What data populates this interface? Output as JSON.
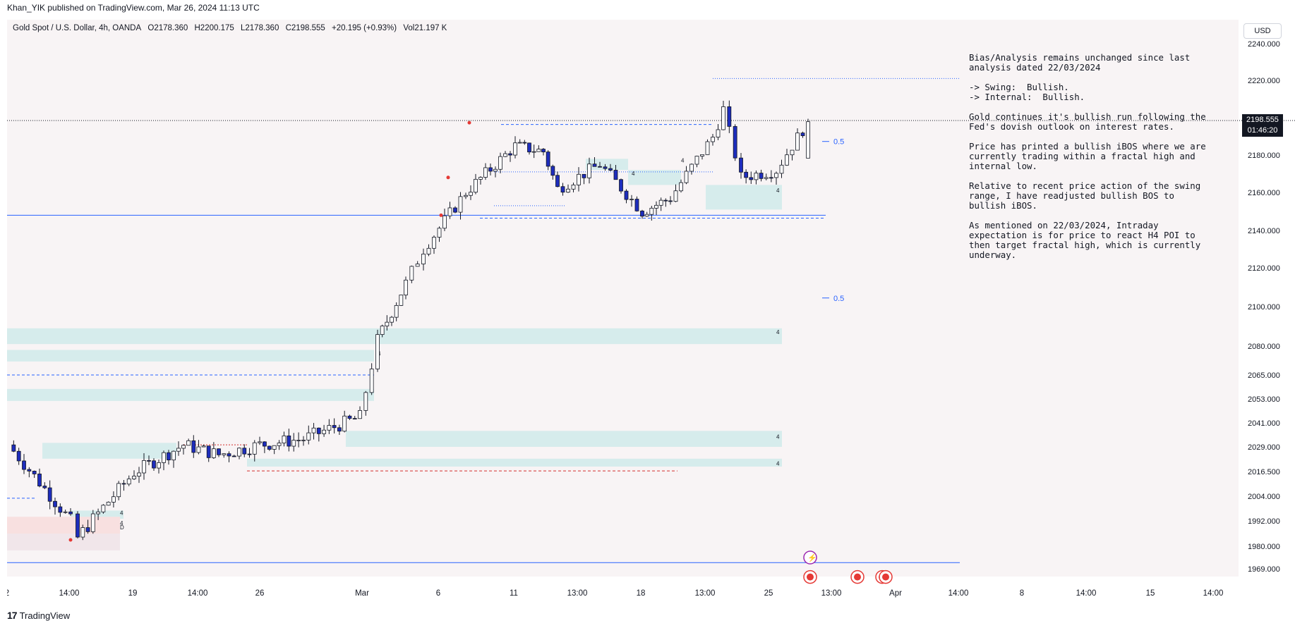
{
  "header": {
    "credit": "Khan_YIK published on TradingView.com, Mar 26, 2024 11:13 UTC"
  },
  "legend": {
    "symbol": "Gold Spot / U.S. Dollar, 4h, OANDA",
    "open": "O2178.360",
    "high": "H2200.175",
    "low": "L2178.360",
    "close": "C2198.555",
    "change": "+20.195 (+0.93%)",
    "volume": "Vol21.197 K"
  },
  "currency_button": "USD",
  "price_label": {
    "price": "2198.555",
    "countdown": "01:46:20"
  },
  "note": {
    "paragraphs": [
      "Bias/Analysis remains unchanged since last analysis dated 22/03/2024",
      "-> Swing:  Bullish.\n-> Internal:  Bullish.",
      "Gold continues it's bullish run following the Fed's dovish outlook on interest rates.",
      "Price has printed a bullish iBOS where we are currently trading within a fractal high and internal low.",
      "Relative to recent price action of the swing range, I have readjusted bullish BOS to bullish iBOS.",
      "As mentioned on 22/03/2024, Intraday expectation is for price to react H4 POI to then target fractal high, which is currently underway."
    ]
  },
  "footer": {
    "brand": "TradingView",
    "logo_mark": "17"
  },
  "colors": {
    "up_candle": "#ffffff",
    "down_candle": "#1e2dbd",
    "wick": "#131722",
    "zone_blue": "#d6ecec",
    "zone_red": "#f8e0e0",
    "dashed_blue": "#2962ff",
    "dashed_red": "#d32f2f",
    "solid_blue": "#2962ff",
    "background": "#f8f4f5"
  },
  "chart_data": {
    "type": "candlestick",
    "title": "Gold Spot / U.S. Dollar, 4h, OANDA",
    "y_ticks": [
      "2240.000",
      "2220.000",
      "2200.000",
      "2180.000",
      "2160.000",
      "2140.000",
      "2120.000",
      "2100.000",
      "2080.000",
      "2065.000",
      "2053.000",
      "2041.000",
      "2029.000",
      "2016.500",
      "2004.000",
      "1992.000",
      "1980.000",
      "1969.000"
    ],
    "x_ticks": [
      "2",
      "14:00",
      "19",
      "14:00",
      "26",
      "Mar",
      "6",
      "11",
      "13:00",
      "18",
      "13:00",
      "25",
      "13:00",
      "Apr",
      "14:00",
      "8",
      "14:00",
      "15",
      "14:00"
    ],
    "x_time_range": [
      "Feb 12",
      "Apr 17"
    ],
    "candles_summary": {
      "start_price": 2030,
      "low": 1984,
      "high": 2222,
      "last_close": 2198.555,
      "path": [
        {
          "date": "Feb 14",
          "price": 1992
        },
        {
          "date": "Feb 15",
          "price": 1984
        },
        {
          "date": "Feb 19",
          "price": 2016
        },
        {
          "date": "Feb 21",
          "price": 2030
        },
        {
          "date": "Feb 23",
          "price": 2025
        },
        {
          "date": "Feb 26",
          "price": 2030
        },
        {
          "date": "Feb 28",
          "price": 2033
        },
        {
          "date": "Feb 29",
          "price": 2044
        },
        {
          "date": "Mar 1",
          "price": 2083
        },
        {
          "date": "Mar 4",
          "price": 2112
        },
        {
          "date": "Mar 5",
          "price": 2130
        },
        {
          "date": "Mar 7",
          "price": 2160
        },
        {
          "date": "Mar 8",
          "price": 2185
        },
        {
          "date": "Mar 11",
          "price": 2182
        },
        {
          "date": "Mar 13",
          "price": 2162
        },
        {
          "date": "Mar 14",
          "price": 2175
        },
        {
          "date": "Mar 18",
          "price": 2150
        },
        {
          "date": "Mar 19",
          "price": 2157
        },
        {
          "date": "Mar 20",
          "price": 2190
        },
        {
          "date": "Mar 21",
          "price": 2205
        },
        {
          "date": "Mar 22",
          "price": 2168
        },
        {
          "date": "Mar 25",
          "price": 2172
        },
        {
          "date": "Mar 26",
          "price": 2198.555
        }
      ]
    },
    "fib_labels": [
      "0.5",
      "0.5"
    ],
    "zone_labels": [
      "4",
      "4",
      "4",
      "4",
      "4",
      "4",
      "4",
      "4",
      "4",
      "4",
      "D"
    ]
  }
}
